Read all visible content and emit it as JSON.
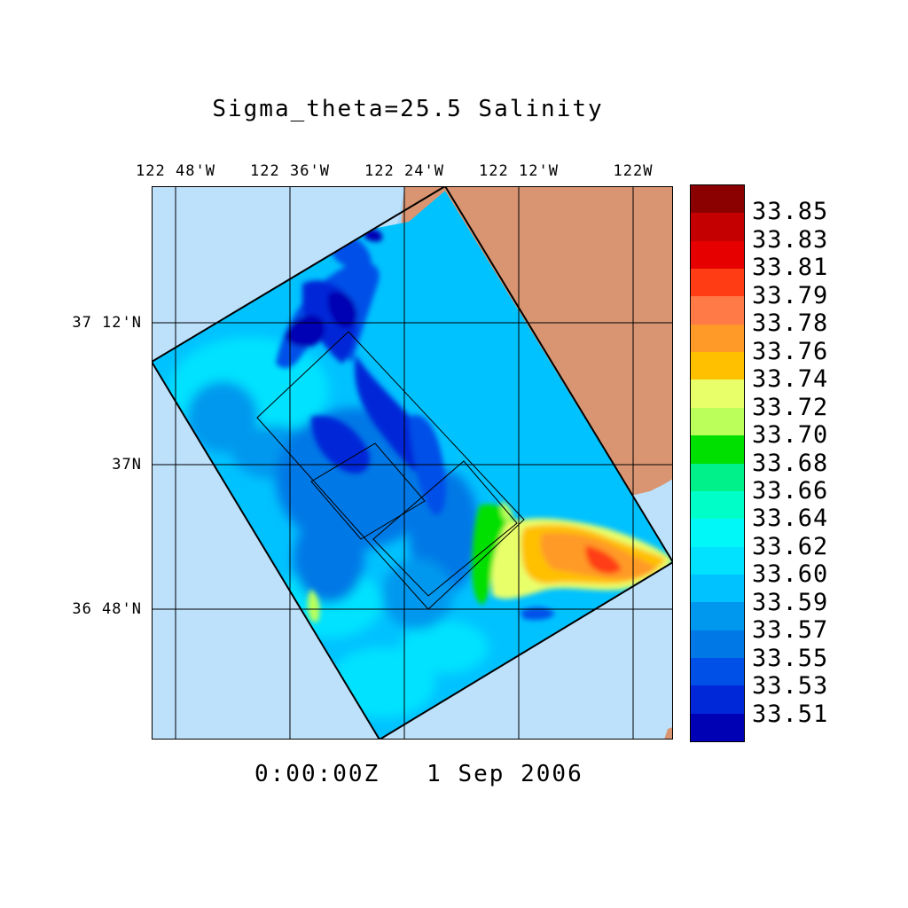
{
  "title": "Sigma_theta=25.5 Salinity",
  "timestamp": "0:00:00Z   1 Sep 2006",
  "longitude_labels": [
    "122 48'W",
    "122 36'W",
    "122 24'W",
    "122 12'W",
    "122W"
  ],
  "latitude_labels": [
    "37 12'N",
    "37N",
    "36 48'N"
  ],
  "colorbar": {
    "labels": [
      "33.85",
      "33.83",
      "33.81",
      "33.79",
      "33.78",
      "33.76",
      "33.74",
      "33.72",
      "33.70",
      "33.68",
      "33.66",
      "33.64",
      "33.62",
      "33.60",
      "33.59",
      "33.57",
      "33.55",
      "33.53",
      "33.51"
    ],
    "colors": [
      "#8b0000",
      "#c40000",
      "#e60000",
      "#ff3c14",
      "#ff7a46",
      "#ff9a28",
      "#ffc000",
      "#e8ff6a",
      "#baff5a",
      "#00e000",
      "#00f08a",
      "#00ffc8",
      "#00f8f8",
      "#00e2ff",
      "#00c2ff",
      "#0098ee",
      "#0078e6",
      "#0050e8",
      "#0028d8",
      "#0000b4"
    ]
  },
  "colors": {
    "ocean": "#bde0fb",
    "land": "#d99572",
    "shelf": "#a9d6f8"
  }
}
